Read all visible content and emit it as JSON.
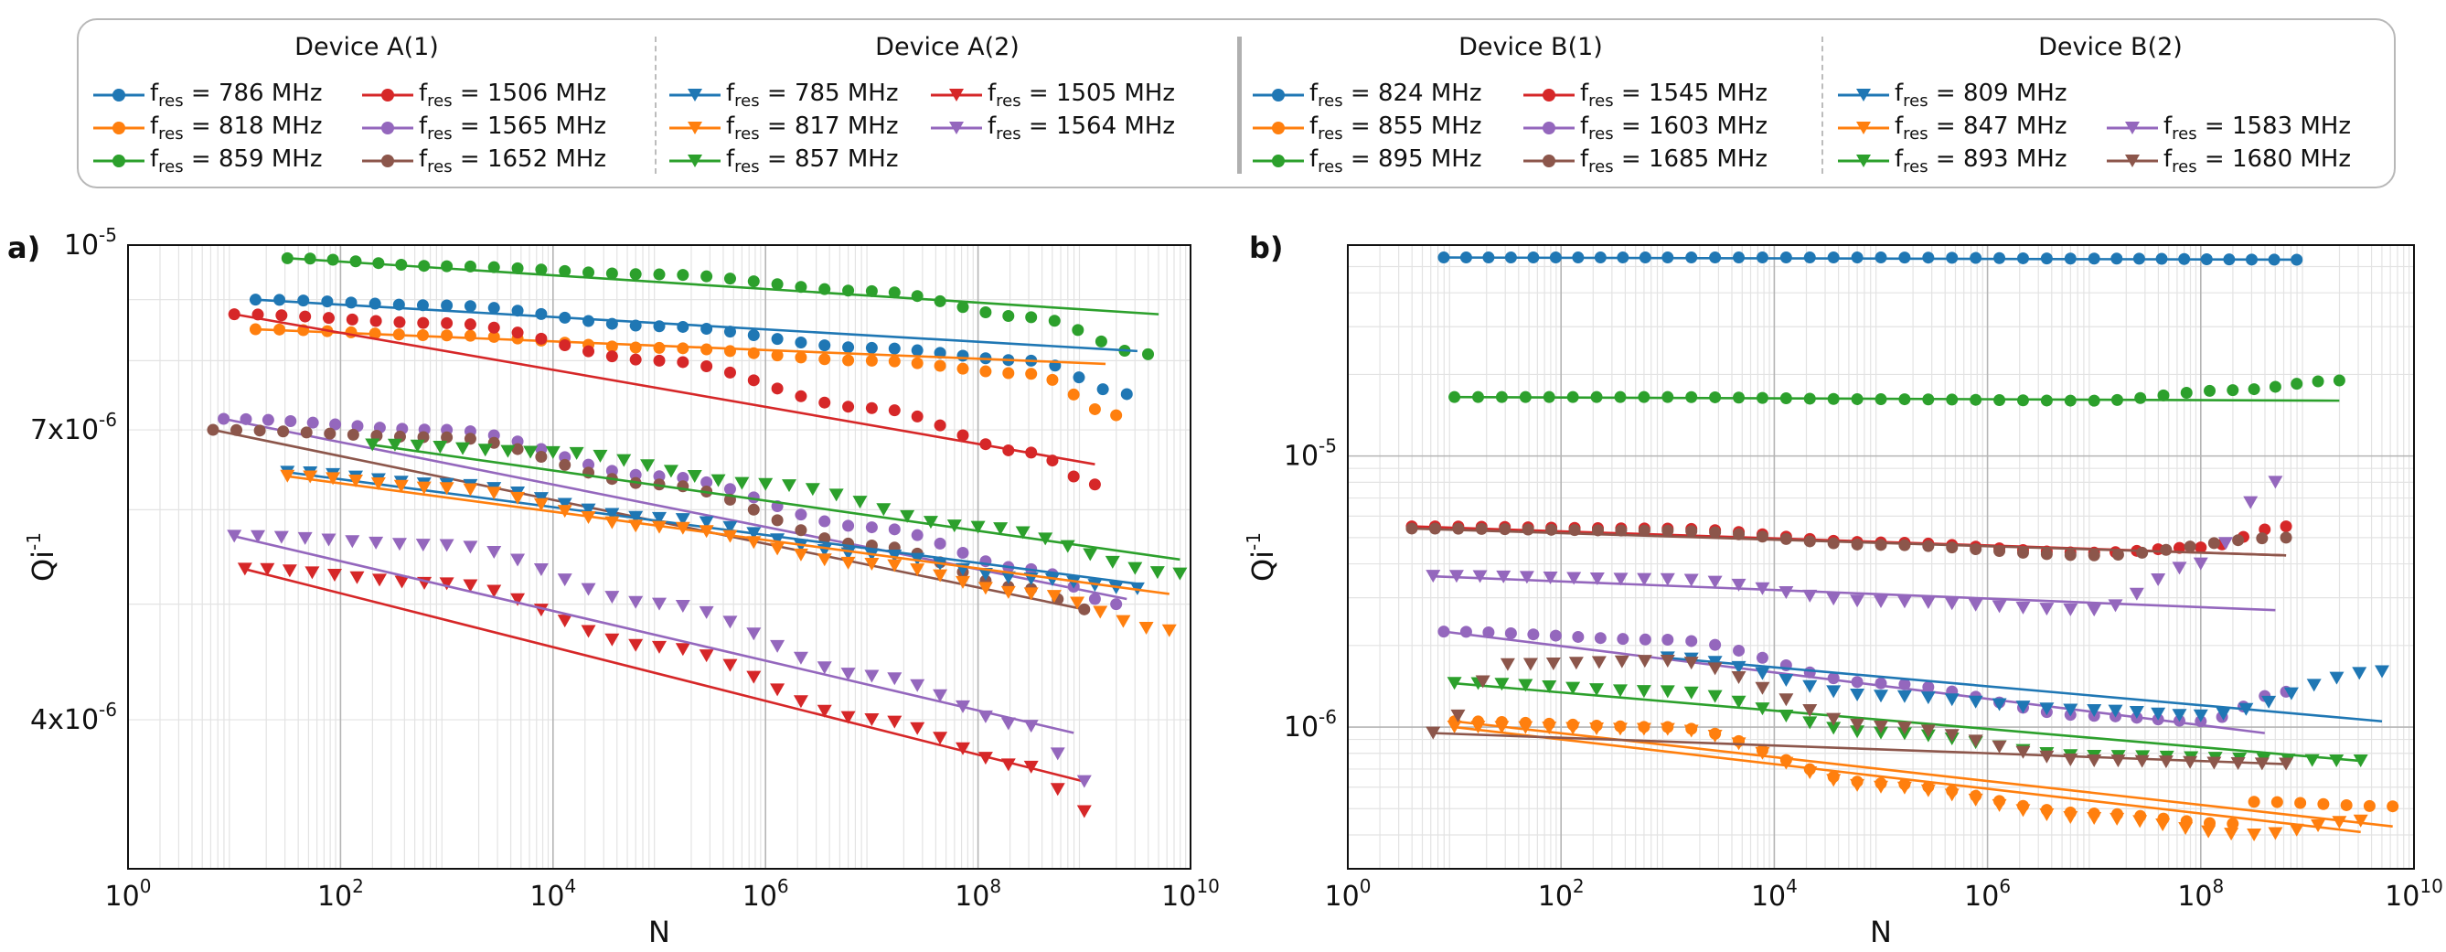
{
  "legend": {
    "groups": [
      {
        "title": "Device A(1)",
        "marker": "circle",
        "columns": [
          [
            {
              "f": "786",
              "color": "#1f77b4"
            },
            {
              "f": "818",
              "color": "#ff7f0e"
            },
            {
              "f": "859",
              "color": "#2ca02c"
            }
          ],
          [
            {
              "f": "1506",
              "color": "#d62728"
            },
            {
              "f": "1565",
              "color": "#9467bd"
            },
            {
              "f": "1652",
              "color": "#8c564b"
            }
          ]
        ]
      },
      {
        "title": "Device A(2)",
        "marker": "triangle",
        "columns": [
          [
            {
              "f": "785",
              "color": "#1f77b4"
            },
            {
              "f": "817",
              "color": "#ff7f0e"
            },
            {
              "f": "857",
              "color": "#2ca02c"
            }
          ],
          [
            {
              "f": "1505",
              "color": "#d62728"
            },
            {
              "f": "1564",
              "color": "#9467bd"
            }
          ]
        ]
      },
      {
        "title": "Device B(1)",
        "marker": "circle",
        "columns": [
          [
            {
              "f": "824",
              "color": "#1f77b4"
            },
            {
              "f": "855",
              "color": "#ff7f0e"
            },
            {
              "f": "895",
              "color": "#2ca02c"
            }
          ],
          [
            {
              "f": "1545",
              "color": "#d62728"
            },
            {
              "f": "1603",
              "color": "#9467bd"
            },
            {
              "f": "1685",
              "color": "#8c564b"
            }
          ]
        ]
      },
      {
        "title": "Device B(2)",
        "marker": "triangle",
        "columns": [
          [
            {
              "f": "809",
              "color": "#1f77b4"
            },
            {
              "f": "847",
              "color": "#ff7f0e"
            },
            {
              "f": "893",
              "color": "#2ca02c"
            }
          ],
          [
            {
              "f": "",
              "color": ""
            },
            {
              "f": "1583",
              "color": "#9467bd"
            },
            {
              "f": "1680",
              "color": "#8c564b"
            }
          ]
        ]
      }
    ],
    "label_prefix": "f",
    "label_subscript": "res",
    "label_unit": "MHz"
  },
  "chart_data": [
    {
      "panel": "a)",
      "type": "scatter",
      "xlabel": "N",
      "ylabel_base": "Qi",
      "ylabel_sup": "-1",
      "xscale": "log",
      "yscale": "log",
      "xlim_exp": [
        0,
        10
      ],
      "ylim": [
        3e-06,
        1e-05
      ],
      "xticks": [
        {
          "base": "10",
          "exp": "0",
          "e": 0
        },
        {
          "base": "10",
          "exp": "2",
          "e": 2
        },
        {
          "base": "10",
          "exp": "4",
          "e": 4
        },
        {
          "base": "10",
          "exp": "6",
          "e": 6
        },
        {
          "base": "10",
          "exp": "8",
          "e": 8
        },
        {
          "base": "10",
          "exp": "10",
          "e": 10
        }
      ],
      "yticks": [
        {
          "mant": "4x10",
          "exp": "-6",
          "v": 4e-06
        },
        {
          "mant": "7x10",
          "exp": "-6",
          "v": 7e-06
        },
        {
          "mant": "10",
          "exp": "-5",
          "v": 1e-05
        }
      ],
      "series": [
        {
          "name": "A(1) 859 MHz",
          "color": "#2ca02c",
          "marker": "circle",
          "fit_end": [
            9.7,
            8.75e-06
          ],
          "points": [
            [
              1.5,
              9.75e-06
            ],
            [
              3,
              9.6e-06
            ],
            [
              5,
              9.45e-06
            ],
            [
              7,
              9.15e-06
            ],
            [
              8.5,
              8.7e-06
            ],
            [
              9.6,
              8.1e-06
            ]
          ]
        },
        {
          "name": "A(1) 786 MHz",
          "color": "#1f77b4",
          "marker": "circle",
          "fit_end": [
            9.5,
            8.15e-06
          ],
          "points": [
            [
              1.2,
              9e-06
            ],
            [
              3,
              8.9e-06
            ],
            [
              5,
              8.55e-06
            ],
            [
              7,
              8.2e-06
            ],
            [
              8.5,
              8e-06
            ],
            [
              9.4,
              7.5e-06
            ]
          ]
        },
        {
          "name": "A(1) 818 MHz",
          "color": "#ff7f0e",
          "marker": "circle",
          "fit_end": [
            9.2,
            7.95e-06
          ],
          "points": [
            [
              1.2,
              8.5e-06
            ],
            [
              3,
              8.4e-06
            ],
            [
              5,
              8.2e-06
            ],
            [
              7,
              8e-06
            ],
            [
              8.5,
              7.8e-06
            ],
            [
              9.3,
              7.2e-06
            ]
          ]
        },
        {
          "name": "A(1) 1506 MHz",
          "color": "#d62728",
          "marker": "circle",
          "fit_end": [
            9.1,
            6.55e-06
          ],
          "points": [
            [
              1,
              8.75e-06
            ],
            [
              3,
              8.6e-06
            ],
            [
              5,
              8e-06
            ],
            [
              7,
              7.3e-06
            ],
            [
              8.5,
              6.7e-06
            ],
            [
              9.1,
              6.3e-06
            ]
          ]
        },
        {
          "name": "A(1) 1565 MHz",
          "color": "#9467bd",
          "marker": "circle",
          "fit_end": [
            9.4,
            5.05e-06
          ],
          "points": [
            [
              0.9,
              7.15e-06
            ],
            [
              3,
              7e-06
            ],
            [
              5,
              6.4e-06
            ],
            [
              7,
              5.8e-06
            ],
            [
              8.5,
              5.35e-06
            ],
            [
              9.3,
              5e-06
            ]
          ]
        },
        {
          "name": "A(1) 1652 MHz",
          "color": "#8c564b",
          "marker": "circle",
          "fit_end": [
            9,
            4.95e-06
          ],
          "points": [
            [
              0.8,
              7e-06
            ],
            [
              3,
              6.9e-06
            ],
            [
              5,
              6.3e-06
            ],
            [
              7,
              5.6e-06
            ],
            [
              8.5,
              5.15e-06
            ],
            [
              9,
              4.95e-06
            ]
          ]
        },
        {
          "name": "A(2) 785 MHz",
          "color": "#1f77b4",
          "marker": "triangle",
          "fit_end": [
            9.5,
            5.2e-06
          ],
          "points": [
            [
              1.5,
              6.45e-06
            ],
            [
              3,
              6.3e-06
            ],
            [
              5,
              5.9e-06
            ],
            [
              7,
              5.5e-06
            ],
            [
              8.5,
              5.25e-06
            ],
            [
              9.5,
              5.15e-06
            ]
          ]
        },
        {
          "name": "A(2) 817 MHz",
          "color": "#ff7f0e",
          "marker": "triangle",
          "fit_end": [
            9.8,
            5.1e-06
          ],
          "points": [
            [
              1.5,
              6.4e-06
            ],
            [
              3,
              6.25e-06
            ],
            [
              5,
              5.8e-06
            ],
            [
              7,
              5.4e-06
            ],
            [
              8.5,
              5.1e-06
            ],
            [
              9.8,
              4.75e-06
            ]
          ]
        },
        {
          "name": "A(2) 857 MHz",
          "color": "#2ca02c",
          "marker": "triangle",
          "fit_end": [
            9.9,
            5.45e-06
          ],
          "points": [
            [
              2.3,
              6.8e-06
            ],
            [
              4,
              6.7e-06
            ],
            [
              6,
              6.3e-06
            ],
            [
              8,
              5.8e-06
            ],
            [
              9.9,
              5.3e-06
            ]
          ]
        },
        {
          "name": "A(2) 1505 MHz",
          "color": "#d62728",
          "marker": "triangle",
          "fit_end": [
            9,
            3.55e-06
          ],
          "points": [
            [
              1.1,
              5.35e-06
            ],
            [
              3,
              5.2e-06
            ],
            [
              5,
              4.6e-06
            ],
            [
              7,
              4e-06
            ],
            [
              8.5,
              3.65e-06
            ],
            [
              9,
              3.35e-06
            ]
          ]
        },
        {
          "name": "A(2) 1564 MHz",
          "color": "#9467bd",
          "marker": "triangle",
          "fit_end": [
            8.9,
            3.9e-06
          ],
          "points": [
            [
              1,
              5.7e-06
            ],
            [
              3,
              5.6e-06
            ],
            [
              5,
              5e-06
            ],
            [
              7,
              4.35e-06
            ],
            [
              8.5,
              3.95e-06
            ],
            [
              9,
              3.55e-06
            ]
          ]
        }
      ]
    },
    {
      "panel": "b)",
      "type": "scatter",
      "xlabel": "N",
      "ylabel_base": "Qi",
      "ylabel_sup": "-1",
      "xscale": "log",
      "yscale": "log",
      "xlim_exp": [
        0,
        10
      ],
      "ylim": [
        3e-07,
        6e-05
      ],
      "xticks": [
        {
          "base": "10",
          "exp": "0",
          "e": 0
        },
        {
          "base": "10",
          "exp": "2",
          "e": 2
        },
        {
          "base": "10",
          "exp": "4",
          "e": 4
        },
        {
          "base": "10",
          "exp": "6",
          "e": 6
        },
        {
          "base": "10",
          "exp": "8",
          "e": 8
        },
        {
          "base": "10",
          "exp": "10",
          "e": 10
        }
      ],
      "yticks": [
        {
          "mant": "10",
          "exp": "-6",
          "v": 1e-06
        },
        {
          "mant": "10",
          "exp": "-5",
          "v": 1e-05
        }
      ],
      "series": [
        {
          "name": "B(1) 824 MHz",
          "color": "#1f77b4",
          "marker": "circle",
          "fit_end": [
            8.9,
            5.3e-05
          ],
          "points": [
            [
              0.9,
              5.4e-05
            ],
            [
              3,
              5.4e-05
            ],
            [
              5,
              5.4e-05
            ],
            [
              7,
              5.35e-05
            ],
            [
              8.9,
              5.3e-05
            ]
          ]
        },
        {
          "name": "B(1) 895 MHz",
          "color": "#2ca02c",
          "marker": "circle",
          "fit_end": [
            9.3,
            1.6e-05
          ],
          "points": [
            [
              1,
              1.65e-05
            ],
            [
              3,
              1.65e-05
            ],
            [
              5,
              1.62e-05
            ],
            [
              7,
              1.6e-05
            ],
            [
              8.3,
              1.75e-05
            ],
            [
              9.3,
              1.9e-05
            ]
          ]
        },
        {
          "name": "B(1) 1545 MHz",
          "color": "#d62728",
          "marker": "circle",
          "fit_end": [
            8.8,
            4.3e-06
          ],
          "points": [
            [
              0.6,
              5.5e-06
            ],
            [
              3,
              5.4e-06
            ],
            [
              5,
              4.8e-06
            ],
            [
              7,
              4.4e-06
            ],
            [
              8,
              4.6e-06
            ],
            [
              8.8,
              5.5e-06
            ]
          ]
        },
        {
          "name": "B(1) 1685 MHz",
          "color": "#8c564b",
          "marker": "circle",
          "fit_end": [
            8.8,
            4.3e-06
          ],
          "points": [
            [
              0.6,
              5.4e-06
            ],
            [
              3,
              5.3e-06
            ],
            [
              5,
              4.7e-06
            ],
            [
              7,
              4.3e-06
            ],
            [
              8.8,
              5e-06
            ]
          ]
        },
        {
          "name": "B(1) 1603 MHz",
          "color": "#9467bd",
          "marker": "circle",
          "fit_end": [
            8.6,
            9.5e-07
          ],
          "points": [
            [
              0.9,
              2.25e-06
            ],
            [
              3,
              2.1e-06
            ],
            [
              5,
              1.45e-06
            ],
            [
              7,
              1.1e-06
            ],
            [
              8,
              1.05e-06
            ],
            [
              8.8,
              1.35e-06
            ]
          ]
        },
        {
          "name": "B(1) 855 MHz",
          "color": "#ff7f0e",
          "marker": "circle",
          "fit_end": [
            9.8,
            4.3e-07
          ],
          "points": [
            [
              1,
              1.05e-06
            ],
            [
              3,
              1e-06
            ],
            [
              5,
              6.2e-07
            ],
            [
              7,
              4.8e-07
            ],
            [
              8.3,
              4.4e-07
            ],
            [
              8.5,
              5.3e-07
            ],
            [
              9.8,
              5.1e-07
            ]
          ]
        },
        {
          "name": "B(2) 809 MHz",
          "color": "#1f77b4",
          "marker": "triangle",
          "fit_end": [
            9.7,
            1.05e-06
          ],
          "points": [
            [
              3,
              1.8e-06
            ],
            [
              5,
              1.3e-06
            ],
            [
              7,
              1.15e-06
            ],
            [
              8,
              1.1e-06
            ],
            [
              9.7,
              1.6e-06
            ]
          ]
        },
        {
          "name": "B(2) 847 MHz",
          "color": "#ff7f0e",
          "marker": "triangle",
          "fit_end": [
            9.5,
            4.1e-07
          ],
          "points": [
            [
              1,
              1e-06
            ],
            [
              3,
              9.8e-07
            ],
            [
              5,
              6e-07
            ],
            [
              7,
              4.6e-07
            ],
            [
              8.5,
              4e-07
            ],
            [
              9.5,
              4.5e-07
            ]
          ]
        },
        {
          "name": "B(2) 893 MHz",
          "color": "#2ca02c",
          "marker": "triangle",
          "fit_end": [
            9.5,
            7.5e-07
          ],
          "points": [
            [
              1,
              1.45e-06
            ],
            [
              3,
              1.35e-06
            ],
            [
              5,
              9.5e-07
            ],
            [
              7,
              7.8e-07
            ],
            [
              9.5,
              7.5e-07
            ]
          ]
        },
        {
          "name": "B(2) 1583 MHz",
          "color": "#9467bd",
          "marker": "triangle",
          "fit_end": [
            8.7,
            2.7e-06
          ],
          "points": [
            [
              0.8,
              3.6e-06
            ],
            [
              3,
              3.5e-06
            ],
            [
              5,
              2.9e-06
            ],
            [
              7,
              2.7e-06
            ],
            [
              8,
              4e-06
            ],
            [
              8.7,
              8e-06
            ]
          ]
        },
        {
          "name": "B(2) 1680 MHz",
          "color": "#8c564b",
          "marker": "triangle",
          "fit_end": [
            8.8,
            7.3e-07
          ],
          "points": [
            [
              0.8,
              9.5e-07
            ],
            [
              1.5,
              1.7e-06
            ],
            [
              3,
              1.75e-06
            ],
            [
              5,
              1e-06
            ],
            [
              7,
              7.5e-07
            ],
            [
              8.8,
              7.3e-07
            ]
          ]
        }
      ]
    }
  ]
}
